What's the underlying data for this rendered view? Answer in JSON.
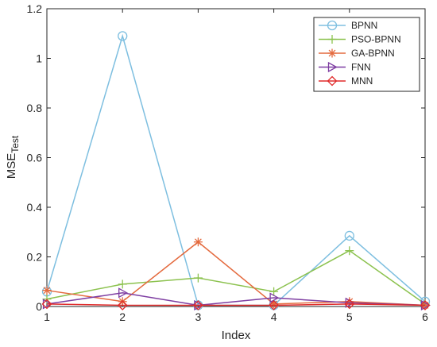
{
  "chart_data": {
    "type": "line",
    "xlabel": "Index",
    "ylabel": {
      "main": "MSE",
      "subscript": "Test"
    },
    "xlim": [
      1,
      6
    ],
    "ylim": [
      0,
      1.2
    ],
    "x": [
      1,
      2,
      3,
      4,
      5,
      6
    ],
    "x_ticks": [
      "1",
      "2",
      "3",
      "4",
      "5",
      "6"
    ],
    "y_ticks": [
      {
        "value": 0,
        "label": "0"
      },
      {
        "value": 0.2,
        "label": "0.2"
      },
      {
        "value": 0.4,
        "label": "0.4"
      },
      {
        "value": 0.6,
        "label": "0.6"
      },
      {
        "value": 0.8,
        "label": "0.8"
      },
      {
        "value": 1.0,
        "label": "1"
      },
      {
        "value": 1.2,
        "label": "1.2"
      }
    ],
    "grid": false,
    "legend_position": "top-right",
    "series": [
      {
        "name": "BPNN",
        "color": "#7ebfe0",
        "marker": "circle",
        "values": [
          0.06,
          1.09,
          0.005,
          0.005,
          0.285,
          0.02
        ]
      },
      {
        "name": "PSO-BPNN",
        "color": "#8cc24f",
        "marker": "plus",
        "values": [
          0.03,
          0.09,
          0.115,
          0.06,
          0.225,
          0.01
        ]
      },
      {
        "name": "GA-BPNN",
        "color": "#e46a3e",
        "marker": "asterisk",
        "values": [
          0.065,
          0.02,
          0.26,
          0.01,
          0.02,
          0.005
        ]
      },
      {
        "name": "FNN",
        "color": "#7e3ea2",
        "marker": "triangle-right",
        "values": [
          0.01,
          0.055,
          0.005,
          0.035,
          0.015,
          0.005
        ]
      },
      {
        "name": "MNN",
        "color": "#e02b2b",
        "marker": "diamond",
        "values": [
          0.01,
          0.005,
          0.005,
          0.005,
          0.01,
          0.005
        ]
      }
    ]
  }
}
